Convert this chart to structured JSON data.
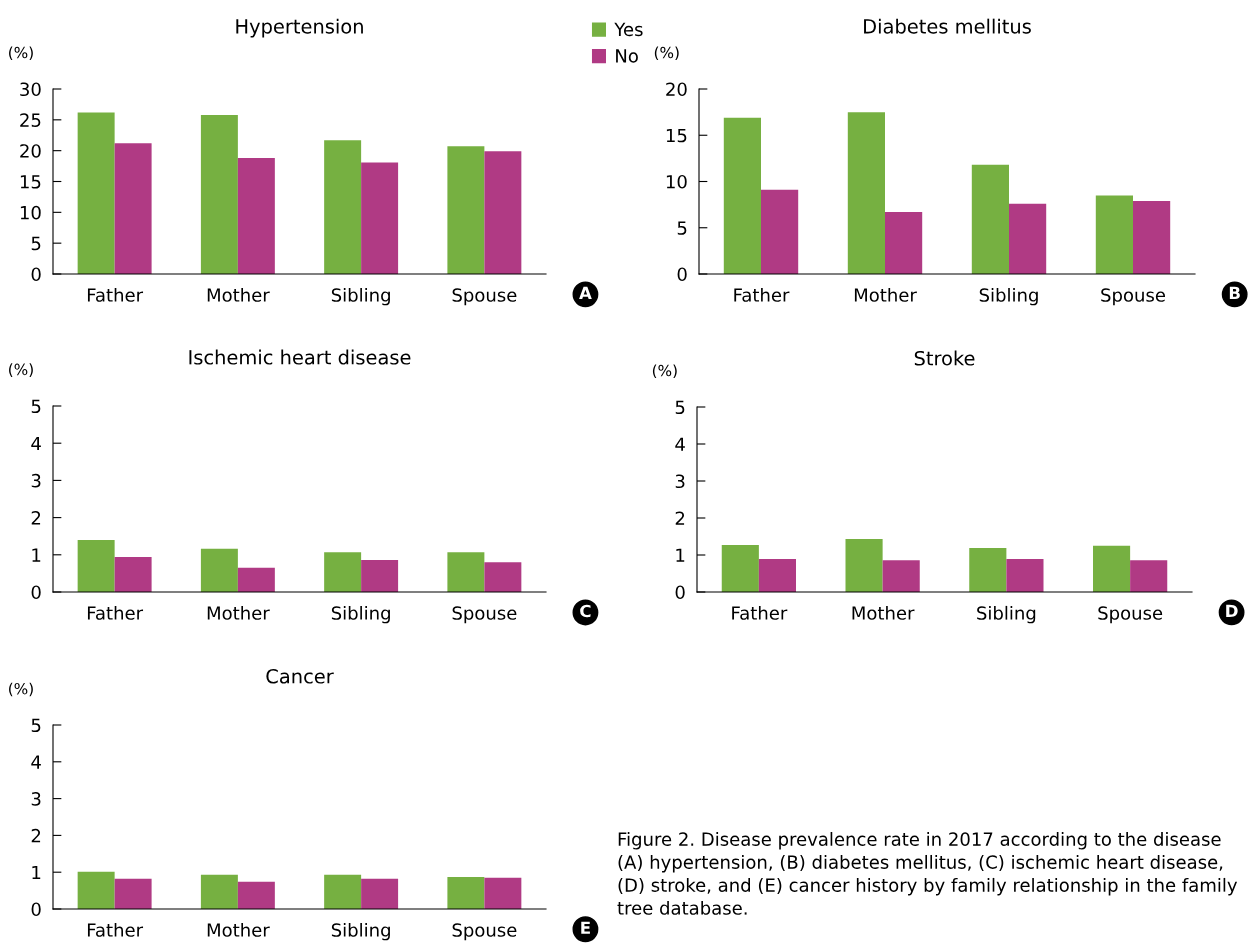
{
  "chart_data": [
    {
      "type": "bar",
      "title": "Hypertension",
      "ylabel": "(%)",
      "categories": [
        "Father",
        "Mother",
        "Sibling",
        "Spouse"
      ],
      "series": [
        {
          "name": "Yes",
          "color": "#76b041",
          "values": [
            26.2,
            25.8,
            21.7,
            20.7
          ]
        },
        {
          "name": "No",
          "color": "#b03a84",
          "values": [
            21.2,
            18.8,
            18.1,
            19.9
          ]
        }
      ],
      "ylim": [
        0,
        30
      ],
      "yticks": [
        0,
        5,
        10,
        15,
        20,
        25,
        30
      ],
      "legend": "top right",
      "grid": false,
      "annotations": [
        "A"
      ]
    },
    {
      "type": "bar",
      "title": "Diabetes mellitus",
      "ylabel": "(%)",
      "categories": [
        "Father",
        "Mother",
        "Sibling",
        "Spouse"
      ],
      "series": [
        {
          "color": "#76b041",
          "values": [
            16.9,
            17.5,
            11.8,
            8.5
          ]
        },
        {
          "color": "#b03a84",
          "values": [
            9.1,
            6.7,
            7.6,
            7.9
          ]
        }
      ],
      "ylim": [
        0,
        20
      ],
      "yticks": [
        0,
        5,
        10,
        15,
        20
      ],
      "grid": false,
      "annotations": [
        "B"
      ]
    },
    {
      "type": "bar",
      "title": "Ischemic heart disease",
      "ylabel": "(%)",
      "categories": [
        "Father",
        "Mother",
        "Sibling",
        "Spouse"
      ],
      "series": [
        {
          "color": "#76b041",
          "values": [
            1.4,
            1.16,
            1.07,
            1.07
          ]
        },
        {
          "color": "#b03a84",
          "values": [
            0.94,
            0.65,
            0.86,
            0.8
          ]
        }
      ],
      "ylim": [
        0,
        5
      ],
      "yticks": [
        0,
        1,
        2,
        3,
        4,
        5
      ],
      "grid": false,
      "annotations": [
        "C"
      ]
    },
    {
      "type": "bar",
      "title": "Stroke",
      "ylabel": "(%)",
      "categories": [
        "Father",
        "Mother",
        "Sibling",
        "Spouse"
      ],
      "series": [
        {
          "color": "#76b041",
          "values": [
            1.27,
            1.43,
            1.19,
            1.25
          ]
        },
        {
          "color": "#b03a84",
          "values": [
            0.89,
            0.86,
            0.89,
            0.86
          ]
        }
      ],
      "ylim": [
        0,
        5
      ],
      "yticks": [
        0,
        1,
        2,
        3,
        4,
        5
      ],
      "grid": false,
      "annotations": [
        "D"
      ]
    },
    {
      "type": "bar",
      "title": "Cancer",
      "ylabel": "(%)",
      "categories": [
        "Father",
        "Mother",
        "Sibling",
        "Spouse"
      ],
      "series": [
        {
          "color": "#76b041",
          "values": [
            1.01,
            0.93,
            0.93,
            0.87
          ]
        },
        {
          "color": "#b03a84",
          "values": [
            0.82,
            0.74,
            0.82,
            0.85
          ]
        }
      ],
      "ylim": [
        0,
        5
      ],
      "yticks": [
        0,
        1,
        2,
        3,
        4,
        5
      ],
      "grid": false,
      "annotations": [
        "E",
        "Figure 2. Disease prevalence rate in 2017 according to the disease (A) hypertension, (B) diabetes mellitus, (C) ischemic heart disease, (D) stroke, and (E) cancer history by family relationship in the family tree database."
      ]
    }
  ]
}
